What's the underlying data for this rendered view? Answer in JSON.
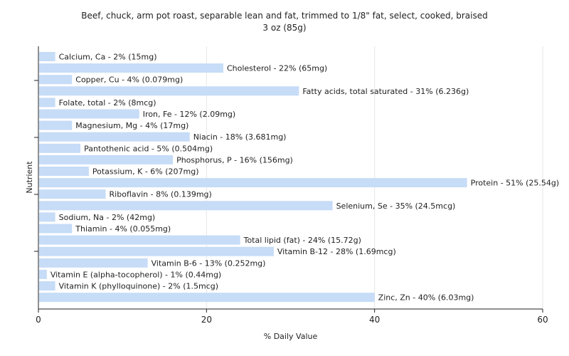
{
  "chart_data": {
    "type": "bar",
    "orientation": "horizontal",
    "title_line1": "Beef, chuck, arm pot roast, separable lean and fat, trimmed to 1/8\" fat, select, cooked, braised",
    "title_line2": "3 oz (85g)",
    "xlabel": "% Daily Value",
    "ylabel": "Nutrient",
    "xlim": [
      0,
      60
    ],
    "xticks": [
      0,
      20,
      40,
      60
    ],
    "grid": true,
    "bar_color": "#c6dcf7",
    "categories": [
      "Calcium, Ca",
      "Cholesterol",
      "Copper, Cu",
      "Fatty acids, total saturated",
      "Folate, total",
      "Iron, Fe",
      "Magnesium, Mg",
      "Niacin",
      "Pantothenic acid",
      "Phosphorus, P",
      "Potassium, K",
      "Protein",
      "Riboflavin",
      "Selenium, Se",
      "Sodium, Na",
      "Thiamin",
      "Total lipid (fat)",
      "Vitamin B-12",
      "Vitamin B-6",
      "Vitamin E (alpha-tocopherol)",
      "Vitamin K (phylloquinone)",
      "Zinc, Zn"
    ],
    "values": [
      2,
      22,
      4,
      31,
      2,
      12,
      4,
      18,
      5,
      16,
      6,
      51,
      8,
      35,
      2,
      4,
      24,
      28,
      13,
      1,
      2,
      40
    ],
    "labels": [
      "Calcium, Ca - 2% (15mg)",
      "Cholesterol - 22% (65mg)",
      "Copper, Cu - 4% (0.079mg)",
      "Fatty acids, total saturated - 31% (6.236g)",
      "Folate, total - 2% (8mcg)",
      "Iron, Fe - 12% (2.09mg)",
      "Magnesium, Mg - 4% (17mg)",
      "Niacin - 18% (3.681mg)",
      "Pantothenic acid - 5% (0.504mg)",
      "Phosphorus, P - 16% (156mg)",
      "Potassium, K - 6% (207mg)",
      "Protein - 51% (25.54g)",
      "Riboflavin - 8% (0.139mg)",
      "Selenium, Se - 35% (24.5mcg)",
      "Sodium, Na - 2% (42mg)",
      "Thiamin - 4% (0.055mg)",
      "Total lipid (fat) - 24% (15.72g)",
      "Vitamin B-12 - 28% (1.69mcg)",
      "Vitamin B-6 - 13% (0.252mg)",
      "Vitamin E (alpha-tocopherol) - 1% (0.44mg)",
      "Vitamin K (phylloquinone) - 2% (1.5mcg)",
      "Zinc, Zn - 40% (6.03mg)"
    ]
  }
}
